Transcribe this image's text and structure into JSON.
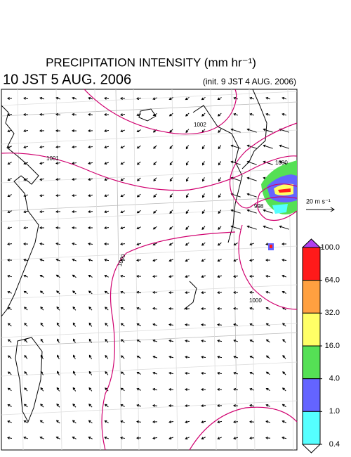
{
  "header": {
    "title": "PRECIPITATION INTENSITY (mm hr⁻¹)",
    "valid_time": "10 JST 5 AUG. 2006",
    "init_time": "(init. 9 JST 4 AUG. 2006)"
  },
  "wind_scale": {
    "label": "20 m s⁻¹"
  },
  "colorbar": {
    "levels": [
      {
        "value": 100,
        "label": "100.0"
      },
      {
        "value": 64,
        "label": "64.0"
      },
      {
        "value": 32,
        "label": "32.0"
      },
      {
        "value": 16,
        "label": "16.0"
      },
      {
        "value": 4,
        "label": "4.0"
      },
      {
        "value": 1,
        "label": "1.0"
      },
      0.4
    ],
    "colors": [
      "#ff1a1a",
      "#ffa040",
      "#ffff66",
      "#55e055",
      "#6464ff",
      "#55ffff"
    ],
    "over_color": "#b040f0",
    "under_color": "#ffffff"
  },
  "contours": [
    {
      "label": "1002"
    },
    {
      "label": "1001"
    },
    {
      "label": "1000"
    },
    {
      "label": "998"
    },
    {
      "label": "1000"
    },
    {
      "label": "1000"
    }
  ]
}
